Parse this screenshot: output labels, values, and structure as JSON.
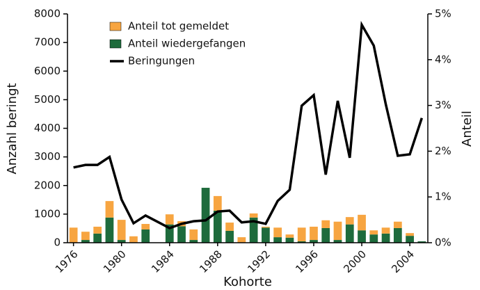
{
  "chart_data": {
    "type": "combo",
    "x_label": "Kohorte",
    "y_label": "Anzahl beringt",
    "y2_label": "Anteil",
    "x": [
      1976,
      1977,
      1978,
      1979,
      1980,
      1981,
      1982,
      1983,
      1984,
      1985,
      1986,
      1987,
      1988,
      1989,
      1990,
      1991,
      1992,
      1993,
      1994,
      1995,
      1996,
      1997,
      1998,
      1999,
      2000,
      2001,
      2002,
      2003,
      2004,
      2005
    ],
    "xlim": [
      1975.5,
      2005.5
    ],
    "xticks": [
      1976,
      1980,
      1984,
      1988,
      1992,
      1996,
      2000,
      2004
    ],
    "ylim": [
      0,
      8000
    ],
    "yticks": [
      0,
      1000,
      2000,
      3000,
      4000,
      5000,
      6000,
      7000,
      8000
    ],
    "y2lim": [
      0,
      5
    ],
    "y2ticks": [
      {
        "value": 0,
        "label": "0%"
      },
      {
        "value": 1,
        "label": "1%"
      },
      {
        "value": 2,
        "label": "2%"
      },
      {
        "value": 3,
        "label": "3%"
      },
      {
        "value": 4,
        "label": "4%"
      },
      {
        "value": 5,
        "label": "5%"
      }
    ],
    "series": [
      {
        "name": "Anteil wiedergefangen",
        "type": "bar",
        "axis": "y2",
        "color": "#1e6b3c",
        "values": [
          0,
          0.06,
          0.2,
          0.55,
          0.06,
          0,
          0.29,
          0,
          0.4,
          0.36,
          0.06,
          1.2,
          0.7,
          0.26,
          0,
          0.55,
          0.33,
          0.12,
          0.11,
          0.03,
          0.06,
          0.32,
          0.06,
          0.4,
          0.27,
          0.18,
          0.2,
          0.32,
          0.15,
          0.03
        ]
      },
      {
        "name": "Anteil tot gemeldet",
        "type": "bar",
        "axis": "y2",
        "color": "#f7a541",
        "values": [
          0.33,
          0.18,
          0.15,
          0.36,
          0.44,
          0.14,
          0.12,
          0,
          0.22,
          0.11,
          0.23,
          0,
          0.32,
          0.18,
          0.12,
          0.09,
          0.02,
          0.21,
          0.07,
          0.3,
          0.29,
          0.17,
          0.4,
          0.16,
          0.34,
          0.09,
          0.13,
          0.14,
          0.06,
          0
        ]
      },
      {
        "name": "Beringungen",
        "type": "line",
        "color": "#000000",
        "values": [
          2630,
          2720,
          2720,
          3000,
          1510,
          680,
          950,
          730,
          510,
          660,
          750,
          780,
          1090,
          1120,
          710,
          750,
          660,
          1460,
          1850,
          4790,
          5160,
          2380,
          4960,
          2970,
          7620,
          6890,
          4840,
          3040,
          3090,
          4360
        ]
      }
    ]
  }
}
